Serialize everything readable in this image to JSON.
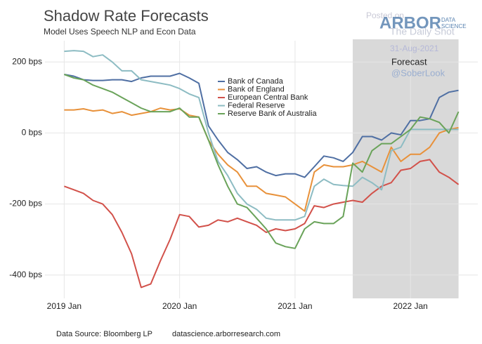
{
  "chart_data": {
    "type": "line",
    "title": "Shadow Rate Forecasts",
    "subtitle": "Model Uses Speech NLP and Econ Data",
    "x": [
      "2019-01",
      "2019-02",
      "2019-03",
      "2019-04",
      "2019-05",
      "2019-06",
      "2019-07",
      "2019-08",
      "2019-09",
      "2019-10",
      "2019-11",
      "2019-12",
      "2020-01",
      "2020-02",
      "2020-03",
      "2020-04",
      "2020-05",
      "2020-06",
      "2020-07",
      "2020-08",
      "2020-09",
      "2020-10",
      "2020-11",
      "2020-12",
      "2021-01",
      "2021-02",
      "2021-03",
      "2021-04",
      "2021-05",
      "2021-06",
      "2021-07",
      "2021-08",
      "2021-09",
      "2021-10",
      "2021-11",
      "2021-12",
      "2022-01",
      "2022-02",
      "2022-03",
      "2022-04",
      "2022-05",
      "2022-06"
    ],
    "series": [
      {
        "name": "Bank of Canada",
        "color": "#4f6fa3",
        "values": [
          165,
          160,
          150,
          148,
          148,
          150,
          150,
          145,
          155,
          160,
          160,
          160,
          168,
          155,
          140,
          20,
          -20,
          -55,
          -75,
          -100,
          -95,
          -110,
          -120,
          -115,
          -115,
          -125,
          -95,
          -65,
          -70,
          -80,
          -55,
          -10,
          -10,
          -20,
          0,
          -5,
          35,
          35,
          40,
          100,
          115,
          120
        ]
      },
      {
        "name": "Bank of England",
        "color": "#e8913a",
        "values": [
          65,
          65,
          68,
          62,
          65,
          55,
          60,
          50,
          55,
          60,
          70,
          65,
          68,
          50,
          45,
          -20,
          -60,
          -90,
          -110,
          -150,
          -150,
          -170,
          -175,
          -180,
          -200,
          -220,
          -110,
          -90,
          -95,
          -95,
          -90,
          -80,
          -95,
          -110,
          -40,
          -80,
          -60,
          -60,
          -40,
          0,
          10,
          15
        ]
      },
      {
        "name": "European Central Bank",
        "color": "#d2514a",
        "values": [
          -150,
          -160,
          -170,
          -190,
          -200,
          -230,
          -280,
          -340,
          -435,
          -425,
          -360,
          -300,
          -230,
          -235,
          -265,
          -260,
          -245,
          -250,
          -240,
          -250,
          -260,
          -280,
          -270,
          -275,
          -270,
          -255,
          -205,
          -210,
          -200,
          -195,
          -190,
          -195,
          -170,
          -150,
          -140,
          -105,
          -100,
          -80,
          -75,
          -110,
          -125,
          -145
        ]
      },
      {
        "name": "Federal Reserve",
        "color": "#8dbcc3",
        "values": [
          230,
          232,
          230,
          215,
          220,
          200,
          175,
          175,
          150,
          145,
          140,
          135,
          125,
          110,
          100,
          0,
          -80,
          -120,
          -170,
          -200,
          -215,
          -240,
          -245,
          -245,
          -245,
          -235,
          -150,
          -130,
          -145,
          -148,
          -150,
          -125,
          -140,
          -160,
          -50,
          -40,
          10,
          10,
          10,
          10,
          10,
          10
        ]
      },
      {
        "name": "Reserve Bank of Australia",
        "color": "#6aa35a",
        "values": [
          165,
          155,
          150,
          135,
          125,
          115,
          100,
          85,
          70,
          60,
          60,
          60,
          70,
          45,
          45,
          -20,
          -90,
          -150,
          -200,
          -210,
          -240,
          -270,
          -310,
          -320,
          -325,
          -270,
          -250,
          -255,
          -255,
          -235,
          -85,
          -110,
          -50,
          -30,
          -30,
          -10,
          10,
          45,
          40,
          30,
          0,
          60
        ]
      }
    ],
    "xlim": [
      "2018-11",
      "2022-08"
    ],
    "xticks": [
      {
        "value": "2019-01",
        "label": "2019 Jan"
      },
      {
        "value": "2020-01",
        "label": "2020 Jan"
      },
      {
        "value": "2021-01",
        "label": "2021 Jan"
      },
      {
        "value": "2022-01",
        "label": "2022 Jan"
      }
    ],
    "ylim": [
      -450,
      250
    ],
    "yticks": [
      {
        "value": 200,
        "label": "200 bps"
      },
      {
        "value": 0,
        "label": "0 bps"
      },
      {
        "value": -200,
        "label": "-200 bps"
      },
      {
        "value": -400,
        "label": "-400 bps"
      }
    ],
    "grid": true,
    "forecast_region": [
      "2021-07",
      "2022-06"
    ],
    "forecast_label": "Forecast",
    "watermarks": [
      "Posted on",
      "The Daily Shot",
      "31-Aug-2021",
      "@SoberLook"
    ],
    "logo": [
      "ARBOR",
      "DATA",
      "SCIENCE"
    ],
    "footer": [
      "Data Source: Bloomberg LP",
      "datascience.arborresearch.com"
    ]
  }
}
